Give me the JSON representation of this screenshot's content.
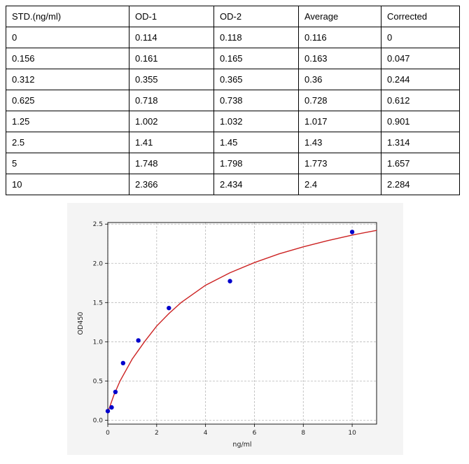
{
  "table": {
    "headers": [
      "STD.(ng/ml)",
      "OD-1",
      "OD-2",
      "Average",
      "Corrected"
    ],
    "rows": [
      [
        "0",
        "0.114",
        "0.118",
        "0.116",
        "0"
      ],
      [
        "0.156",
        "0.161",
        "0.165",
        "0.163",
        "0.047"
      ],
      [
        "0.312",
        "0.355",
        "0.365",
        "0.36",
        "0.244"
      ],
      [
        "0.625",
        "0.718",
        "0.738",
        "0.728",
        "0.612"
      ],
      [
        "1.25",
        "1.002",
        "1.032",
        "1.017",
        "0.901"
      ],
      [
        "2.5",
        "1.41",
        "1.45",
        "1.43",
        "1.314"
      ],
      [
        "5",
        "1.748",
        "1.798",
        "1.773",
        "1.657"
      ],
      [
        "10",
        "2.366",
        "2.434",
        "2.4",
        "2.284"
      ]
    ]
  },
  "chart_data": {
    "type": "scatter",
    "title": "",
    "xlabel": "ng/ml",
    "ylabel": "OD450",
    "xlim": [
      0,
      11
    ],
    "ylim": [
      -0.05,
      2.52
    ],
    "x_ticks": [
      "0",
      "2",
      "4",
      "6",
      "8",
      "10"
    ],
    "y_ticks": [
      "0.0",
      "0.5",
      "1.0",
      "1.5",
      "2.0",
      "2.5"
    ],
    "grid": true,
    "series": [
      {
        "x": [
          0,
          0.156,
          0.312,
          0.625,
          1.25,
          2.5,
          5,
          10
        ],
        "y": [
          0.116,
          0.163,
          0.36,
          0.728,
          1.017,
          1.43,
          1.773,
          2.4
        ],
        "color": "#0000cc"
      }
    ],
    "fit_curve": {
      "color": "#cc2222",
      "x": [
        0,
        0.25,
        0.5,
        1,
        1.5,
        2,
        2.5,
        3,
        4,
        5,
        6,
        7,
        8,
        9,
        10,
        11
      ],
      "y": [
        0.1,
        0.32,
        0.5,
        0.78,
        1.0,
        1.2,
        1.36,
        1.5,
        1.72,
        1.88,
        2.01,
        2.12,
        2.21,
        2.29,
        2.36,
        2.42
      ]
    }
  }
}
